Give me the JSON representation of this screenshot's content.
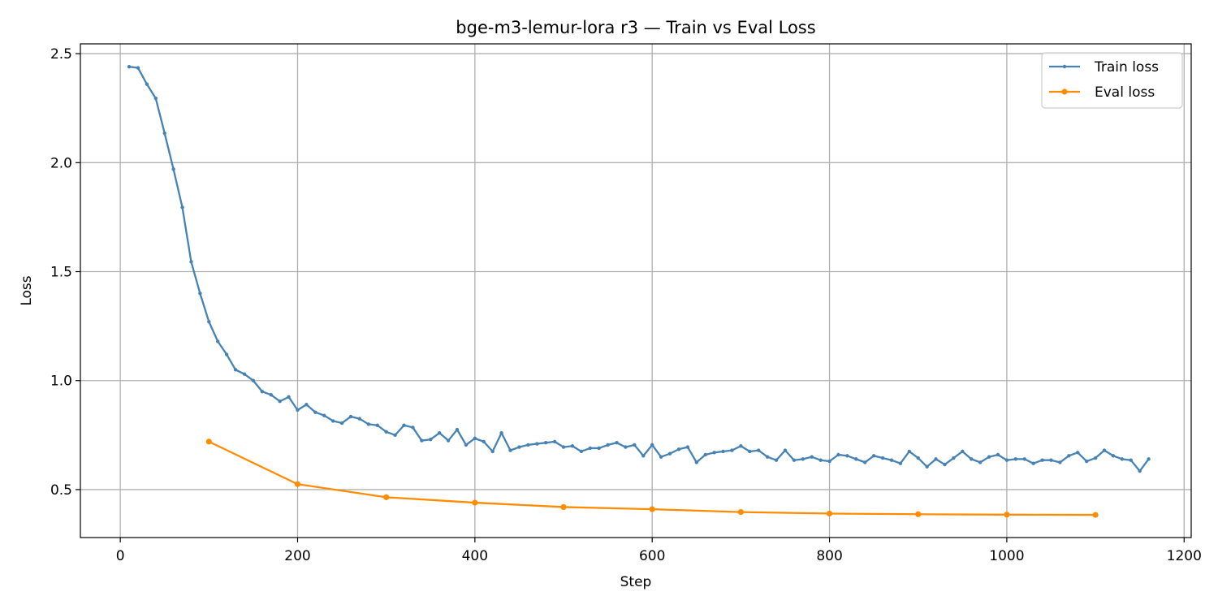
{
  "chart_data": {
    "type": "line",
    "title": "bge-m3-lemur-lora r3 — Train vs Eval Loss",
    "xlabel": "Step",
    "ylabel": "Loss",
    "xlim": [
      -45,
      1208
    ],
    "ylim": [
      0.28,
      2.545
    ],
    "xticks": [
      0,
      200,
      400,
      600,
      800,
      1000,
      1200
    ],
    "xtick_labels": [
      "0",
      "200",
      "400",
      "600",
      "800",
      "1000",
      "1200"
    ],
    "yticks": [
      0.5,
      1.0,
      1.5,
      2.0,
      2.5
    ],
    "ytick_labels": [
      "0.5",
      "1.0",
      "1.5",
      "2.0",
      "2.5"
    ],
    "grid": true,
    "legend_position": "top-right",
    "series": [
      {
        "name": "Train loss",
        "color": "#4682b4",
        "marker_size": 2.2,
        "x": [
          10,
          20,
          30,
          40,
          50,
          60,
          70,
          80,
          90,
          100,
          110,
          120,
          130,
          140,
          150,
          160,
          170,
          180,
          190,
          200,
          210,
          220,
          230,
          240,
          250,
          260,
          270,
          280,
          290,
          300,
          310,
          320,
          330,
          340,
          350,
          360,
          370,
          380,
          390,
          400,
          410,
          420,
          430,
          440,
          450,
          460,
          470,
          480,
          490,
          500,
          510,
          520,
          530,
          540,
          550,
          560,
          570,
          580,
          590,
          600,
          610,
          620,
          630,
          640,
          650,
          660,
          670,
          680,
          690,
          700,
          710,
          720,
          730,
          740,
          750,
          760,
          770,
          780,
          790,
          800,
          810,
          820,
          830,
          840,
          850,
          860,
          870,
          880,
          890,
          900,
          910,
          920,
          930,
          940,
          950,
          960,
          970,
          980,
          990,
          1000,
          1010,
          1020,
          1030,
          1040,
          1050,
          1060,
          1070,
          1080,
          1090,
          1100,
          1110,
          1120,
          1130,
          1140,
          1150,
          1160
        ],
        "y": [
          2.44,
          2.435,
          2.36,
          2.295,
          2.135,
          1.97,
          1.795,
          1.545,
          1.4,
          1.27,
          1.18,
          1.12,
          1.05,
          1.03,
          1.0,
          0.95,
          0.935,
          0.905,
          0.925,
          0.865,
          0.89,
          0.855,
          0.84,
          0.815,
          0.805,
          0.835,
          0.825,
          0.8,
          0.795,
          0.765,
          0.75,
          0.795,
          0.785,
          0.725,
          0.73,
          0.76,
          0.725,
          0.775,
          0.705,
          0.735,
          0.72,
          0.675,
          0.76,
          0.68,
          0.695,
          0.705,
          0.71,
          0.715,
          0.72,
          0.695,
          0.7,
          0.675,
          0.69,
          0.69,
          0.705,
          0.715,
          0.695,
          0.705,
          0.655,
          0.705,
          0.65,
          0.665,
          0.685,
          0.695,
          0.625,
          0.66,
          0.67,
          0.675,
          0.68,
          0.7,
          0.675,
          0.68,
          0.65,
          0.635,
          0.68,
          0.635,
          0.64,
          0.65,
          0.635,
          0.63,
          0.66,
          0.655,
          0.64,
          0.625,
          0.655,
          0.645,
          0.635,
          0.62,
          0.675,
          0.645,
          0.605,
          0.64,
          0.615,
          0.645,
          0.675,
          0.64,
          0.625,
          0.65,
          0.66,
          0.635,
          0.64,
          0.64,
          0.62,
          0.635,
          0.635,
          0.625,
          0.655,
          0.67,
          0.63,
          0.645,
          0.68,
          0.655,
          0.64,
          0.635,
          0.585,
          0.64
        ]
      },
      {
        "name": "Eval loss",
        "color": "#ff8c00",
        "marker_size": 3.6,
        "x": [
          100,
          200,
          300,
          400,
          500,
          600,
          700,
          800,
          900,
          1000,
          1100
        ],
        "y": [
          0.72,
          0.525,
          0.465,
          0.44,
          0.42,
          0.41,
          0.397,
          0.39,
          0.387,
          0.385,
          0.384
        ]
      }
    ]
  }
}
